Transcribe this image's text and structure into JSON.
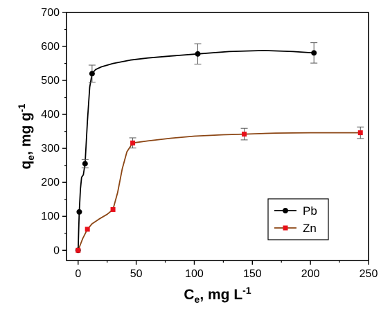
{
  "chart_data": {
    "type": "scatter",
    "xlabel": {
      "main": "C",
      "sub": "e",
      "rest": ", mg L",
      "sup": "-1"
    },
    "ylabel": {
      "main": "q",
      "sub": "e",
      "rest": ", mg g",
      "sup": "-1"
    },
    "xlim": [
      -10,
      250
    ],
    "ylim": [
      -30,
      700
    ],
    "xticks": [
      0,
      50,
      100,
      150,
      200,
      250
    ],
    "yticks": [
      0,
      100,
      200,
      300,
      400,
      500,
      600,
      700
    ],
    "legend_position": "bottom-right",
    "series": [
      {
        "name": "Pb",
        "color": "#000000",
        "line_color": "#000000",
        "marker": "circle",
        "points": [
          {
            "x": 0,
            "y": 0,
            "err": 0
          },
          {
            "x": 1,
            "y": 113,
            "err": 0
          },
          {
            "x": 6,
            "y": 255,
            "err": 12
          },
          {
            "x": 12,
            "y": 520,
            "err": 25
          },
          {
            "x": 103,
            "y": 578,
            "err": 30
          },
          {
            "x": 203,
            "y": 581,
            "err": 30
          }
        ],
        "curve": [
          [
            0,
            0
          ],
          [
            0.5,
            60
          ],
          [
            1,
            113
          ],
          [
            2,
            180
          ],
          [
            3,
            215
          ],
          [
            4.5,
            222
          ],
          [
            6,
            255
          ],
          [
            8,
            380
          ],
          [
            10,
            480
          ],
          [
            12,
            520
          ],
          [
            15,
            532
          ],
          [
            20,
            540
          ],
          [
            30,
            550
          ],
          [
            45,
            560
          ],
          [
            60,
            566
          ],
          [
            80,
            572
          ],
          [
            103,
            578
          ],
          [
            130,
            585
          ],
          [
            160,
            588
          ],
          [
            185,
            585
          ],
          [
            203,
            581
          ]
        ]
      },
      {
        "name": "Zn",
        "color": "#e8101a",
        "line_color": "#8b4513",
        "marker": "square",
        "points": [
          {
            "x": 0,
            "y": 0,
            "err": 0
          },
          {
            "x": 8,
            "y": 62,
            "err": 0
          },
          {
            "x": 30,
            "y": 120,
            "err": 0
          },
          {
            "x": 47,
            "y": 316,
            "err": 15
          },
          {
            "x": 143,
            "y": 342,
            "err": 17
          },
          {
            "x": 243,
            "y": 346,
            "err": 17
          }
        ],
        "curve": [
          [
            0,
            0
          ],
          [
            4,
            35
          ],
          [
            8,
            62
          ],
          [
            12,
            78
          ],
          [
            18,
            92
          ],
          [
            25,
            106
          ],
          [
            30,
            120
          ],
          [
            34,
            170
          ],
          [
            38,
            240
          ],
          [
            42,
            290
          ],
          [
            47,
            316
          ],
          [
            60,
            322
          ],
          [
            80,
            330
          ],
          [
            100,
            336
          ],
          [
            125,
            340
          ],
          [
            143,
            342
          ],
          [
            170,
            345
          ],
          [
            200,
            346
          ],
          [
            225,
            346
          ],
          [
            243,
            346
          ]
        ]
      }
    ]
  }
}
